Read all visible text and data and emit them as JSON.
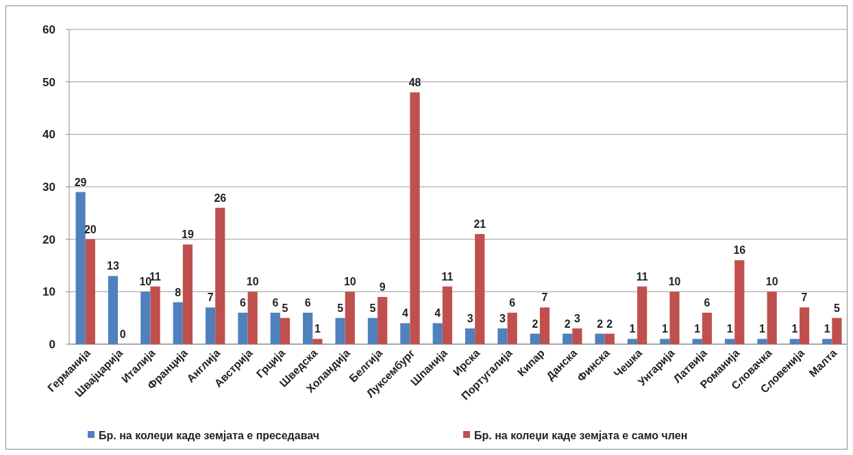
{
  "chart_data": {
    "type": "bar",
    "categories": [
      "Германија",
      "Швајцарија",
      "Италија",
      "Франција",
      "Англија",
      "Австрија",
      "Грција",
      "Шведска",
      "Холандија",
      "Белгија",
      "Луксембург",
      "Шпанија",
      "Ирска",
      "Португалија",
      "Кипар",
      "Данска",
      "Финска",
      "Чешка",
      "Унгарија",
      "Латвија",
      "Романија",
      "Словачка",
      "Словенија",
      "Малта"
    ],
    "series": [
      {
        "name": "Бр. на колеџи каде земјата е преседавач",
        "color": "#4f81bd",
        "values": [
          29,
          13,
          10,
          8,
          7,
          6,
          6,
          6,
          5,
          5,
          4,
          4,
          3,
          3,
          2,
          2,
          2,
          1,
          1,
          1,
          1,
          1,
          1,
          1
        ]
      },
      {
        "name": "Бр. на колеџи каде земјата е само член",
        "color": "#c0504d",
        "values": [
          20,
          0,
          11,
          19,
          26,
          10,
          5,
          1,
          10,
          9,
          48,
          11,
          21,
          6,
          7,
          3,
          2,
          11,
          10,
          6,
          16,
          10,
          7,
          5
        ]
      }
    ],
    "ylim": [
      0,
      60
    ],
    "yticks": [
      0,
      10,
      20,
      30,
      40,
      50,
      60
    ],
    "grid": "y",
    "legend": "bottom",
    "data_labels": true
  }
}
